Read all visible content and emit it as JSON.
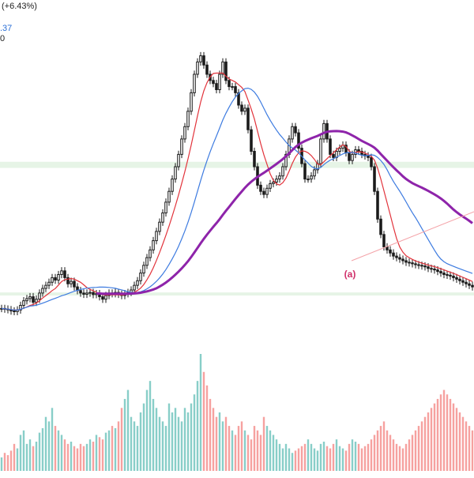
{
  "header": {
    "change_text": "(+6.43%)",
    "ma_text": ".37",
    "vol_text": "0"
  },
  "annotations": [
    {
      "label": "(a)",
      "color": "#d0306a"
    }
  ],
  "colors": {
    "up": "#26a69a",
    "down": "#ef5350",
    "candle": "#1a1a1a",
    "ma_fast": "#e2333b",
    "ma_mid": "#3d7be0",
    "ma_slow": "#8e24aa",
    "zone_fill": "#e6f4e6",
    "trendline": "#f4a3a8",
    "label": "#d0306a"
  },
  "chart_data": {
    "type": "candlestick",
    "title": "",
    "xlabel": "",
    "ylabel": "",
    "ylim": [
      0,
      1000
    ],
    "grid": false,
    "x": [
      0,
      1,
      2,
      3,
      4,
      5,
      6,
      7,
      8,
      9,
      10,
      11,
      12,
      13,
      14,
      15,
      16,
      17,
      18,
      19,
      20,
      21,
      22,
      23,
      24,
      25,
      26,
      27,
      28,
      29,
      30,
      31,
      32,
      33,
      34,
      35,
      36,
      37,
      38,
      39,
      40,
      41,
      42,
      43,
      44,
      45,
      46,
      47,
      48,
      49,
      50,
      51,
      52,
      53,
      54,
      55,
      56,
      57,
      58,
      59,
      60,
      61,
      62,
      63,
      64,
      65,
      66,
      67,
      68,
      69,
      70,
      71,
      72,
      73,
      74,
      75,
      76,
      77,
      78,
      79,
      80,
      81,
      82,
      83,
      84,
      85,
      86,
      87,
      88,
      89,
      90,
      91,
      92,
      93,
      94,
      95,
      96,
      97,
      98,
      99,
      100,
      101,
      102,
      103,
      104,
      105,
      106,
      107,
      108,
      109,
      110,
      111,
      112,
      113,
      114,
      115,
      116,
      117,
      118,
      119,
      120,
      121,
      122,
      123,
      124,
      125,
      126,
      127,
      128,
      129,
      130,
      131,
      132,
      133,
      134,
      135,
      136,
      137,
      138,
      139,
      140,
      141,
      142,
      143,
      144,
      145,
      146,
      147,
      148,
      149
    ],
    "series": [
      {
        "name": "price",
        "values": [
          140,
          138,
          136,
          132,
          130,
          135,
          150,
          165,
          172,
          178,
          160,
          170,
          190,
          205,
          215,
          225,
          240,
          232,
          250,
          262,
          240,
          220,
          228,
          210,
          198,
          190,
          186,
          190,
          192,
          185,
          188,
          178,
          170,
          182,
          190,
          188,
          192,
          186,
          182,
          188,
          192,
          200,
          215,
          230,
          255,
          280,
          305,
          330,
          360,
          390,
          420,
          450,
          485,
          520,
          560,
          600,
          640,
          690,
          730,
          780,
          840,
          900,
          940,
          960,
          930,
          900,
          880,
          870,
          850,
          900,
          940,
          880,
          860,
          860,
          840,
          800,
          780,
          790,
          720,
          650,
          600,
          540,
          520,
          510,
          530,
          545,
          550,
          560,
          570,
          600,
          640,
          690,
          730,
          710,
          660,
          610,
          560,
          560,
          570,
          590,
          610,
          690,
          740,
          690,
          640,
          630,
          650,
          660,
          670,
          645,
          620,
          640,
          655,
          650,
          640,
          635,
          630,
          600,
          520,
          430,
          380,
          340,
          330,
          320,
          310,
          305,
          300,
          295,
          290,
          288,
          285,
          282,
          280,
          278,
          275,
          270,
          268,
          265,
          260,
          255,
          250,
          248,
          245,
          240,
          235,
          230,
          225,
          220,
          215,
          210
        ]
      },
      {
        "name": "volume",
        "values": [
          30,
          40,
          35,
          45,
          60,
          50,
          80,
          90,
          60,
          70,
          55,
          65,
          85,
          95,
          120,
          110,
          140,
          100,
          90,
          80,
          70,
          60,
          65,
          55,
          50,
          60,
          55,
          60,
          70,
          65,
          80,
          75,
          70,
          85,
          90,
          100,
          95,
          110,
          140,
          160,
          180,
          120,
          110,
          100,
          130,
          150,
          180,
          200,
          160,
          140,
          120,
          110,
          100,
          150,
          130,
          140,
          120,
          110,
          140,
          130,
          150,
          170,
          200,
          260,
          220,
          190,
          160,
          140,
          120,
          130,
          110,
          120,
          100,
          90,
          80,
          100,
          110,
          90,
          80,
          70,
          100,
          90,
          80,
          120,
          100,
          90,
          80,
          70,
          60,
          50,
          60,
          50,
          40,
          45,
          50,
          55,
          60,
          70,
          60,
          50,
          45,
          60,
          65,
          55,
          50,
          60,
          70,
          55,
          50,
          45,
          60,
          70,
          65,
          60,
          50,
          55,
          60,
          70,
          80,
          90,
          100,
          110,
          90,
          80,
          70,
          60,
          55,
          50,
          60,
          70,
          80,
          90,
          100,
          110,
          120,
          130,
          140,
          150,
          160,
          170,
          180,
          170,
          160,
          150,
          140,
          130,
          120,
          110,
          100,
          90
        ]
      }
    ],
    "zones": [
      {
        "from": 182,
        "to": 192
      },
      {
        "from": 596,
        "to": 616
      }
    ]
  }
}
